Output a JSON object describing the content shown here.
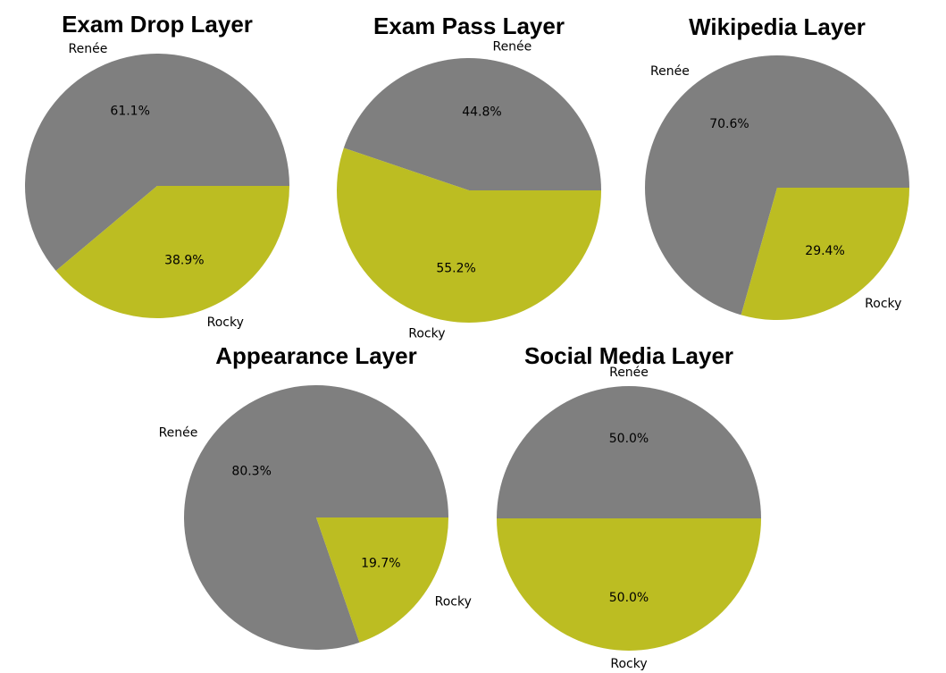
{
  "chart_data": [
    {
      "type": "pie",
      "title": "Exam Drop Layer",
      "labels": [
        "Renée",
        "Rocky"
      ],
      "values": [
        61.1,
        38.9
      ],
      "pct_labels": [
        "61.1%",
        "38.9%"
      ],
      "colors": [
        "#7f7f7f",
        "#bcbd22"
      ]
    },
    {
      "type": "pie",
      "title": "Exam Pass Layer",
      "labels": [
        "Renée",
        "Rocky"
      ],
      "values": [
        44.8,
        55.2
      ],
      "pct_labels": [
        "44.8%",
        "55.2%"
      ],
      "colors": [
        "#7f7f7f",
        "#bcbd22"
      ]
    },
    {
      "type": "pie",
      "title": "Wikipedia Layer",
      "labels": [
        "Renée",
        "Rocky"
      ],
      "values": [
        70.6,
        29.4
      ],
      "pct_labels": [
        "70.6%",
        "29.4%"
      ],
      "colors": [
        "#7f7f7f",
        "#bcbd22"
      ]
    },
    {
      "type": "pie",
      "title": "Appearance Layer",
      "labels": [
        "Renée",
        "Rocky"
      ],
      "values": [
        80.3,
        19.7
      ],
      "pct_labels": [
        "80.3%",
        "19.7%"
      ],
      "colors": [
        "#7f7f7f",
        "#bcbd22"
      ]
    },
    {
      "type": "pie",
      "title": "Social Media Layer",
      "labels": [
        "Renée",
        "Rocky"
      ],
      "values": [
        50.0,
        50.0
      ],
      "pct_labels": [
        "50.0%",
        "50.0%"
      ],
      "colors": [
        "#7f7f7f",
        "#bcbd22"
      ]
    }
  ]
}
